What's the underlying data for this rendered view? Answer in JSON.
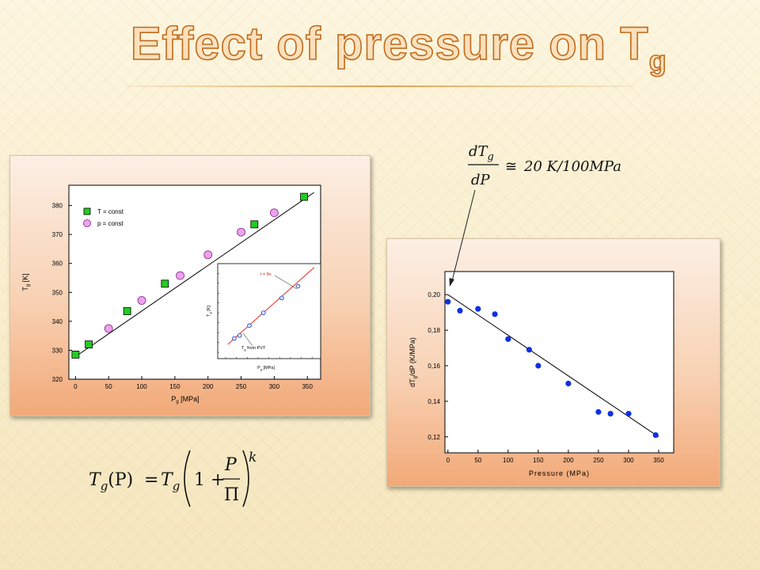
{
  "slide": {
    "title_main": "Effect of pressure on T",
    "title_sub": "g"
  },
  "colors": {
    "title_fill": "#fce0bc",
    "title_stroke": "#c06a1c",
    "green_marker": "#22cc22",
    "pink_marker": "#f0a0f0",
    "blue_marker": "#1030e0",
    "inset_fit": "#e03020"
  },
  "equations": {
    "derivative": {
      "numerator": "dT",
      "num_sub": "g",
      "denominator": "dP",
      "relation": "≅",
      "value_text": "20 K/100MPa"
    },
    "model": {
      "lhs": "T",
      "lhs_sub": "g",
      "lhs_arg": "(P)",
      "equals": "=",
      "rhs": "T",
      "rhs_sub": "g",
      "one_plus": "1 +",
      "frac_num": "P",
      "frac_den": "Π",
      "exponent": "k"
    }
  },
  "chart_data": [
    {
      "type": "scatter",
      "xlabel": "P",
      "xlabel_sub": "g",
      "xlabel_unit": " [MPa]",
      "ylabel": "T",
      "ylabel_sub": "g",
      "ylabel_unit": " [K]",
      "xlim": [
        -10,
        370
      ],
      "ylim": [
        320,
        387
      ],
      "xticks": [
        0,
        50,
        100,
        150,
        200,
        250,
        300,
        350
      ],
      "yticks": [
        320,
        330,
        340,
        350,
        360,
        370,
        380
      ],
      "legend": [
        {
          "label": "T = const",
          "marker": "square",
          "color": "#22cc22"
        },
        {
          "label": "p = const",
          "marker": "circle",
          "color": "#f0a0f0"
        }
      ],
      "series": [
        {
          "name": "T = const",
          "x": [
            0,
            20,
            78,
            135,
            270,
            345
          ],
          "y": [
            328.5,
            332,
            343.5,
            353,
            373.5,
            383
          ]
        },
        {
          "name": "p = const",
          "x": [
            50,
            100,
            158,
            200,
            250,
            300
          ],
          "y": [
            337.5,
            347.2,
            355.8,
            363,
            370.8,
            377.5
          ]
        }
      ],
      "fit_line": {
        "x": [
          0,
          360
        ],
        "y": [
          327.8,
          384.5
        ]
      },
      "inset": {
        "xlabel": "P",
        "xlabel_sub": "g",
        "xlabel_unit": " [MPa]",
        "ylabel": "T",
        "ylabel_sub": "g",
        "ylabel_unit": " [K]",
        "annotation_fit": "t = 8s",
        "annotation_method": "T",
        "annotation_method_sub": "g",
        "annotation_method_rest": " from PVT",
        "x": [
          0.8,
          1.3,
          2.2,
          3.5,
          5.2,
          6.7
        ],
        "y": [
          1.4,
          1.7,
          2.7,
          4.0,
          5.5,
          6.7
        ]
      }
    },
    {
      "type": "scatter",
      "xlabel": "Pressure (MPa)",
      "ylabel": "dT",
      "ylabel_sub": "g",
      "ylabel_rest": "/dP (K/MPa)",
      "xlim": [
        -5,
        375
      ],
      "ylim": [
        0.111,
        0.213
      ],
      "xticks": [
        0,
        50,
        100,
        150,
        200,
        250,
        300,
        350
      ],
      "ytick_labels": [
        "0,12",
        "0,14",
        "0,16",
        "0,18",
        "0,20"
      ],
      "yticks": [
        0.12,
        0.14,
        0.16,
        0.18,
        0.2
      ],
      "series": [
        {
          "x": [
            0,
            20,
            50,
            78,
            100,
            135,
            150,
            200,
            250,
            270,
            300,
            345
          ],
          "y": [
            0.196,
            0.191,
            0.192,
            0.189,
            0.175,
            0.169,
            0.16,
            0.15,
            0.134,
            0.133,
            0.133,
            0.121
          ]
        }
      ],
      "fit_line": {
        "x": [
          0,
          350
        ],
        "y": [
          0.2,
          0.12
        ]
      }
    }
  ]
}
